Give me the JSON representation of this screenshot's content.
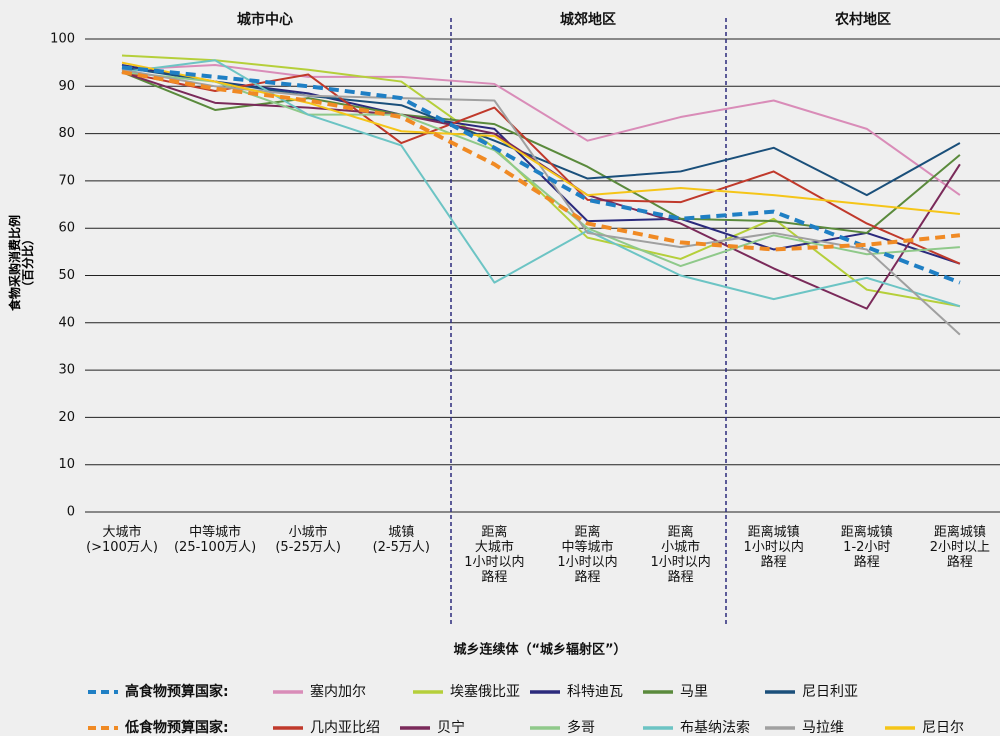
{
  "chart_data": {
    "type": "line",
    "sections": [
      "城市中心",
      "城郊地区",
      "农村地区"
    ],
    "xlabel": "城乡连续体（“城乡辐射区”）",
    "ylabel": "食物采购消费比例\n（百分比）",
    "categories": [
      "大城市\n(>100万人)",
      "中等城市\n(25-100万人)",
      "小城市\n(5-25万人)",
      "城镇\n(2-5万人)",
      "距离\n大城市\n1小时以内\n路程",
      "距离\n中等城市\n1小时以内\n路程",
      "距离\n小城市\n1小时以内\n路程",
      "距离城镇\n1小时以内\n路程",
      "距离城镇\n1-2小时\n路程",
      "距离城镇\n2小时以上\n路程"
    ],
    "ylim": [
      0,
      100
    ],
    "yticks": [
      0,
      10,
      20,
      30,
      40,
      50,
      60,
      70,
      80,
      90,
      100
    ],
    "grid": true,
    "series": [
      {
        "name": "高食物预算国家:",
        "color": "#1f7fc4",
        "dashed": true,
        "values": [
          94,
          92,
          90,
          87.5,
          77,
          66,
          62,
          63.5,
          56,
          48.5
        ]
      },
      {
        "name": "塞内加尔",
        "color": "#d98cb8",
        "values": [
          93.5,
          94.5,
          92,
          92,
          90.5,
          78.5,
          83.5,
          87,
          81,
          67
        ]
      },
      {
        "name": "埃塞俄比亚",
        "color": "#b5cf3a",
        "values": [
          96.5,
          95.5,
          93.5,
          91,
          77,
          58,
          53.5,
          62,
          47,
          43.5
        ]
      },
      {
        "name": "科特迪瓦",
        "color": "#2b2a7c",
        "values": [
          94.5,
          91,
          88.5,
          84,
          81,
          61.5,
          62,
          55.5,
          59,
          52.5
        ]
      },
      {
        "name": "马里",
        "color": "#5a8a3c",
        "values": [
          93,
          85,
          87.5,
          84,
          82,
          73,
          62,
          61.5,
          59,
          75.5
        ]
      },
      {
        "name": "尼日利亚",
        "color": "#1a4f7a",
        "values": [
          94,
          91,
          88,
          86,
          78.5,
          70.5,
          72,
          77,
          67,
          78
        ]
      },
      {
        "name": "低食物预算国家:",
        "color": "#f08a24",
        "dashed": true,
        "values": [
          93,
          89.5,
          87,
          83.5,
          73.5,
          61,
          57,
          55.5,
          56.5,
          58.5
        ]
      },
      {
        "name": "几内亚比绍",
        "color": "#c0392b",
        "values": [
          93,
          89,
          92.5,
          78,
          85.5,
          66,
          65.5,
          72,
          61,
          52.5
        ]
      },
      {
        "name": "贝宁",
        "color": "#7a2a5a",
        "values": [
          93,
          86.5,
          85.5,
          84,
          80,
          67,
          61,
          51.5,
          43,
          73.5
        ]
      },
      {
        "name": "多哥",
        "color": "#8fc98a",
        "values": [
          93,
          91,
          84,
          84,
          76.5,
          60,
          52,
          58.5,
          54.5,
          56
        ]
      },
      {
        "name": "布基纳法索",
        "color": "#6cc4c4",
        "values": [
          93,
          95.5,
          84,
          77.5,
          48.5,
          59.5,
          50,
          45,
          49.5,
          43.5
        ]
      },
      {
        "name": "马拉维",
        "color": "#a0a0a0",
        "values": [
          93.5,
          90,
          88,
          87.5,
          87,
          59,
          56,
          59,
          55.5,
          37.5
        ]
      },
      {
        "name": "尼日尔",
        "color": "#f5c518",
        "values": [
          95,
          91,
          86.5,
          80.5,
          79.5,
          67,
          68.5,
          67,
          65,
          63
        ]
      }
    ]
  }
}
